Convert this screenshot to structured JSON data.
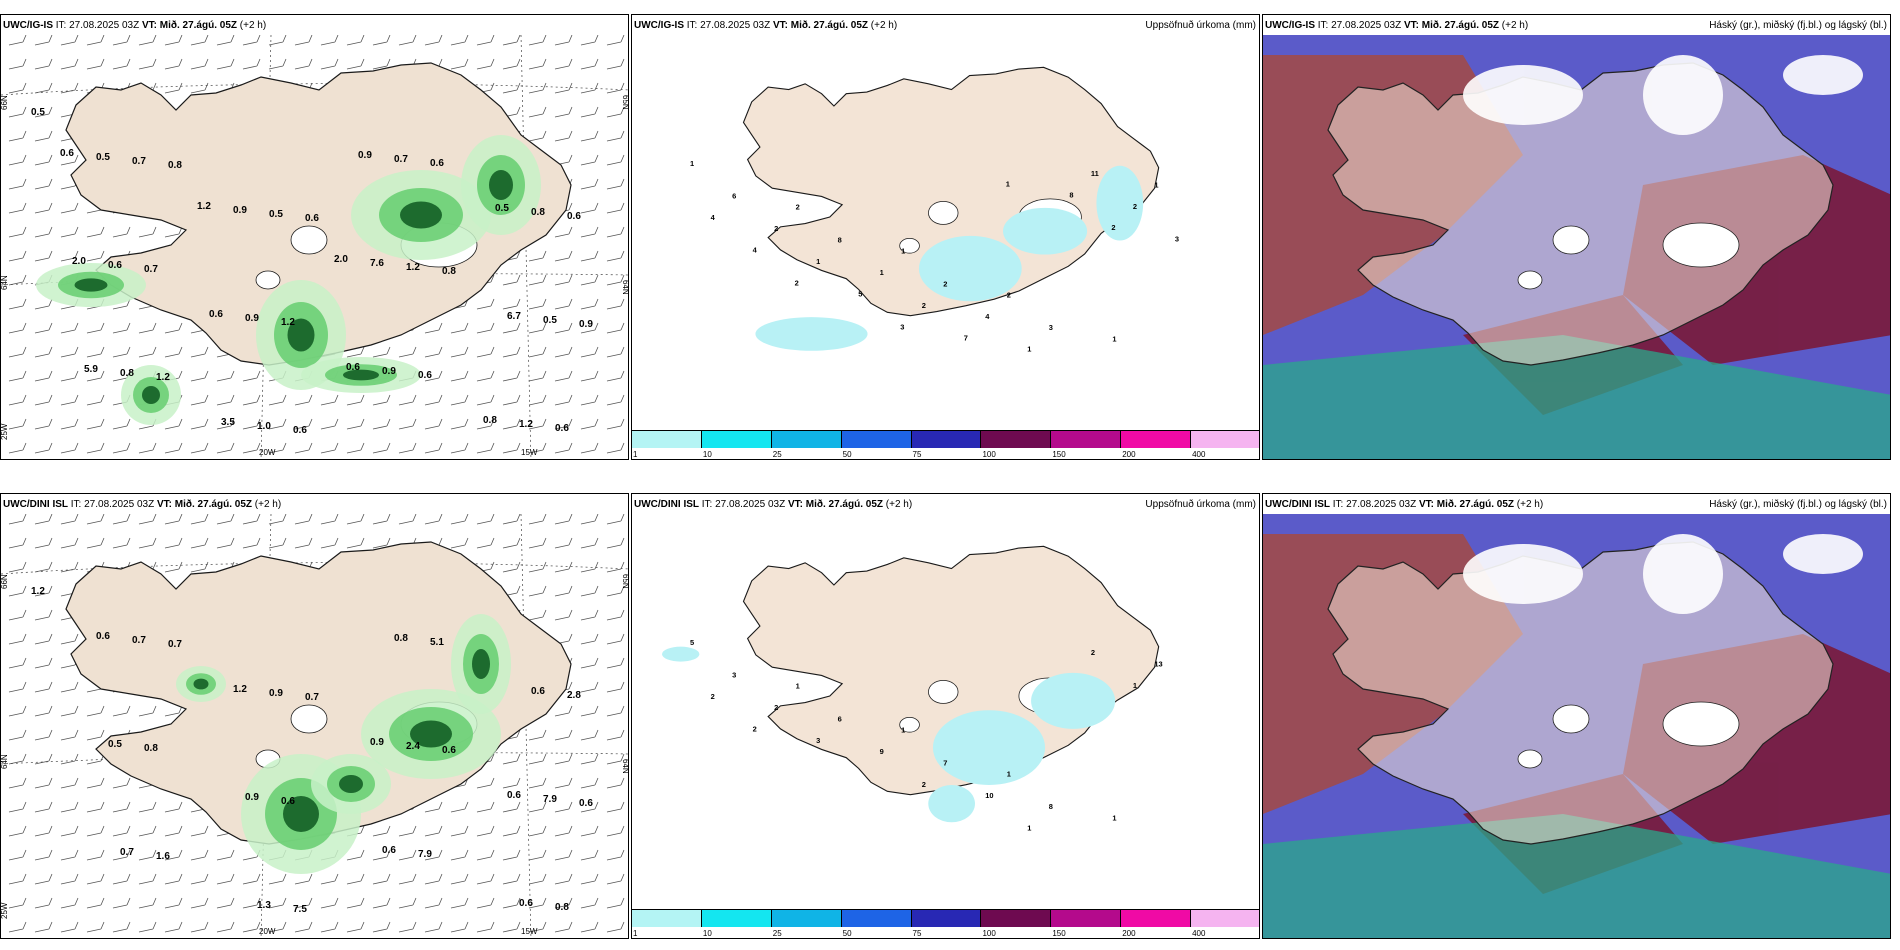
{
  "colors": {
    "land": "#efe1d2",
    "land_fill": "#f3e4d6",
    "coast": "#1a1a1a",
    "precip_light": "#c8f1c8",
    "precip_mid": "#6ccf74",
    "precip_dark": "#1d6b2e",
    "precip_blue": "#8a8ff0",
    "accum_cyan": "#b8f1f5",
    "cloud_high": "#a04a4a",
    "cloud_mid": "#5b5bc9",
    "cloud_low": "#2aa88a"
  },
  "rows": [
    {
      "model": "UWC/IG-IS",
      "init_label": "IT:",
      "init": "27.08.2025 03Z",
      "valid_label": "VT:",
      "valid": "Mið. 27.ágú. 05Z",
      "lead": "(+2 h)",
      "left_panel": {
        "lat_labels": [
          "66N",
          "64N",
          "25W"
        ],
        "lon_labels": [
          "20W",
          "15W"
        ],
        "right_lat": [
          "65N",
          "64N"
        ],
        "values": [
          "0.5",
          "0.8",
          "0.6",
          "0.8",
          "0.9",
          "1.2",
          "0.6",
          "0.6",
          "0.6",
          "0.7",
          "1.2",
          "0.6",
          "0.6",
          "0.7",
          "0.5",
          "1.2",
          "0.5",
          "0.8",
          "1.0",
          "0.7",
          "0.8",
          "0.6",
          "0.9",
          "0.9",
          "1.2",
          "0.5",
          "0.9",
          "7.6",
          "6.7",
          "5.9",
          "3.5",
          "0.9",
          "0.5",
          "2.0",
          "0.6",
          "0.6",
          "0.8",
          "0.6",
          "1.2",
          "2.0"
        ]
      },
      "mid_panel": {
        "title": "Uppsöfnuð úrkoma (mm)",
        "values": [
          "1",
          "2",
          "1",
          "2",
          "1",
          "6",
          "8",
          "2",
          "3",
          "1",
          "2",
          "1",
          "4",
          "11",
          "4",
          "1",
          "2",
          "1",
          "2",
          "4",
          "5",
          "7",
          "8",
          "3",
          "2",
          "3",
          "1",
          "2"
        ]
      },
      "right_panel": {
        "title": "Háský (gr.), miðský (fj.bl.) og lágský (bl.)"
      }
    },
    {
      "model": "UWC/DINI ISL",
      "init_label": "IT:",
      "init": "27.08.2025 03Z",
      "valid_label": "VT:",
      "valid": "Mið. 27.ágú. 05Z",
      "lead": "(+2 h)",
      "left_panel": {
        "lat_labels": [
          "66N",
          "64N",
          "25W"
        ],
        "lon_labels": [
          "20W",
          "15W"
        ],
        "right_lat": [
          "65N",
          "64N"
        ],
        "values": [
          "1.2",
          "0.7",
          "0.7",
          "0.6",
          "0.6",
          "1.6",
          "7.5",
          "5.1",
          "2.8",
          "0.8",
          "0.6",
          "7.9",
          "0.8",
          "0.7",
          "0.9",
          "2.4",
          "7.9",
          "0.7",
          "1.3",
          "0.8",
          "0.6",
          "0.5",
          "0.9",
          "0.6",
          "0.6",
          "0.6",
          "1.2",
          "0.9",
          "0.6"
        ]
      },
      "mid_panel": {
        "title": "Uppsöfnuð úrkoma (mm)",
        "values": [
          "5",
          "1",
          "1",
          "1",
          "1",
          "3",
          "6",
          "7",
          "8",
          "13",
          "2",
          "9",
          "10",
          "2",
          "2",
          "3",
          "2",
          "1",
          "1",
          "2"
        ]
      },
      "right_panel": {
        "title": "Háský (gr.), miðský (fj.bl.) og lágský (bl.)"
      }
    }
  ],
  "colorbar": {
    "labels": [
      "1",
      "10",
      "25",
      "50",
      "75",
      "100",
      "150",
      "200",
      "400"
    ],
    "colors": [
      "#b4f4f4",
      "#14e6f0",
      "#10b4e6",
      "#1e64e6",
      "#2828b4",
      "#6e0a50",
      "#b40a8c",
      "#f00aa5",
      "#f5b4f0"
    ]
  }
}
